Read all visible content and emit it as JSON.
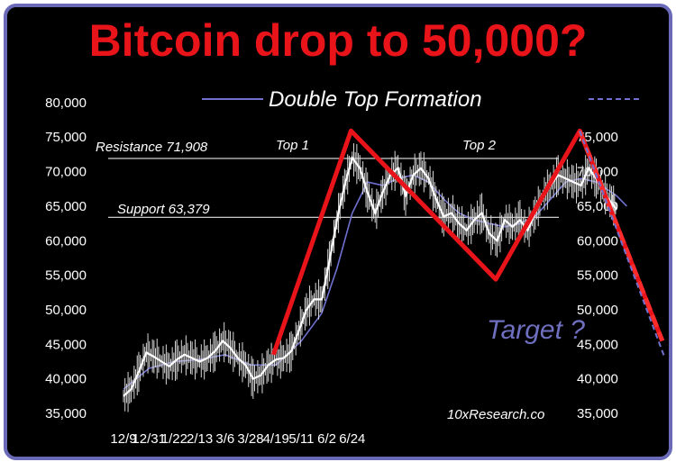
{
  "chart_data": {
    "type": "line",
    "title": "Bitcoin drop to 50,000?",
    "ylim": [
      35000,
      80000
    ],
    "left_y_ticks": [
      "80,000",
      "75,000",
      "70,000",
      "65,000",
      "60,000",
      "55,000",
      "50,000",
      "45,000",
      "40,000",
      "35,000"
    ],
    "right_y_ticks": [
      "75,000",
      "70,000",
      "65,000",
      "60,000",
      "55,000",
      "50,000",
      "45,000",
      "40,000",
      "35,000"
    ],
    "x_ticks": [
      "12/9",
      "12/31",
      "1/22",
      "2/13",
      "3/6",
      "3/28",
      "4/19",
      "5/11",
      "6/2",
      "6/24"
    ],
    "legend": {
      "label": "Double Top Formation",
      "placement": "top-right"
    },
    "resistance": {
      "label": "Resistance",
      "value_text": "71,908",
      "value": 71908
    },
    "support": {
      "label": "Support",
      "value_text": "63,379",
      "value": 63379
    },
    "annotations": {
      "top1": "Top 1",
      "top2": "Top 2",
      "target": "Target ?",
      "credit": "10xResearch.co"
    },
    "pattern_line": [
      {
        "x": 5.9,
        "y": 43500
      },
      {
        "x": 8.95,
        "y": 75900
      },
      {
        "x": 14.65,
        "y": 54400
      },
      {
        "x": 17.95,
        "y": 75900
      },
      {
        "x": 21.2,
        "y": 45500
      }
    ],
    "price_series": [
      [
        0,
        37500
      ],
      [
        0.3,
        38500
      ],
      [
        0.6,
        41000
      ],
      [
        0.9,
        43800
      ],
      [
        1.2,
        43200
      ],
      [
        1.5,
        42500
      ],
      [
        1.8,
        41800
      ],
      [
        2.1,
        42800
      ],
      [
        2.4,
        43500
      ],
      [
        2.7,
        43000
      ],
      [
        3.0,
        42500
      ],
      [
        3.3,
        43000
      ],
      [
        3.6,
        44000
      ],
      [
        3.9,
        45500
      ],
      [
        4.2,
        44500
      ],
      [
        4.5,
        43000
      ],
      [
        4.8,
        42000
      ],
      [
        5.1,
        40000
      ],
      [
        5.4,
        40500
      ],
      [
        5.7,
        42000
      ],
      [
        6.0,
        42800
      ],
      [
        6.3,
        43000
      ],
      [
        6.6,
        44000
      ],
      [
        6.9,
        47000
      ],
      [
        7.2,
        50000
      ],
      [
        7.5,
        51500
      ],
      [
        7.8,
        51500
      ],
      [
        8.1,
        57000
      ],
      [
        8.4,
        63000
      ],
      [
        8.7,
        68000
      ],
      [
        9.0,
        72000
      ],
      [
        9.3,
        70500
      ],
      [
        9.6,
        67000
      ],
      [
        9.9,
        64000
      ],
      [
        10.2,
        67000
      ],
      [
        10.5,
        69500
      ],
      [
        10.8,
        70500
      ],
      [
        11.1,
        66500
      ],
      [
        11.4,
        69500
      ],
      [
        11.7,
        70500
      ],
      [
        12.0,
        69000
      ],
      [
        12.3,
        66000
      ],
      [
        12.6,
        63500
      ],
      [
        12.9,
        64000
      ],
      [
        13.2,
        62500
      ],
      [
        13.5,
        61500
      ],
      [
        13.8,
        63000
      ],
      [
        14.1,
        64000
      ],
      [
        14.4,
        61000
      ],
      [
        14.7,
        60000
      ],
      [
        15.0,
        63000
      ],
      [
        15.3,
        62000
      ],
      [
        15.6,
        63000
      ],
      [
        15.9,
        61500
      ],
      [
        16.2,
        64000
      ],
      [
        16.5,
        66500
      ],
      [
        16.8,
        68000
      ],
      [
        17.1,
        69500
      ],
      [
        17.4,
        69000
      ],
      [
        17.7,
        68500
      ],
      [
        18.0,
        68000
      ],
      [
        18.3,
        70500
      ],
      [
        18.6,
        69000
      ],
      [
        18.9,
        67000
      ],
      [
        19.2,
        65500
      ],
      [
        19.4,
        64500
      ]
    ],
    "moving_average": [
      [
        0,
        38500
      ],
      [
        1.0,
        41500
      ],
      [
        2.0,
        42500
      ],
      [
        3.0,
        42800
      ],
      [
        4.0,
        43500
      ],
      [
        5.0,
        42000
      ],
      [
        6.0,
        42000
      ],
      [
        7.0,
        45500
      ],
      [
        7.8,
        49500
      ],
      [
        8.4,
        56000
      ],
      [
        9.0,
        64000
      ],
      [
        9.6,
        68500
      ],
      [
        10.2,
        68000
      ],
      [
        10.8,
        69000
      ],
      [
        11.4,
        69500
      ],
      [
        12.0,
        68500
      ],
      [
        12.6,
        66000
      ],
      [
        13.2,
        64000
      ],
      [
        13.8,
        63000
      ],
      [
        14.4,
        62500
      ],
      [
        15.0,
        62000
      ],
      [
        15.6,
        62500
      ],
      [
        16.2,
        63500
      ],
      [
        16.8,
        66000
      ],
      [
        17.4,
        68500
      ],
      [
        18.0,
        69000
      ],
      [
        18.6,
        68500
      ],
      [
        19.4,
        66500
      ],
      [
        19.8,
        65000
      ]
    ],
    "projection_line": [
      {
        "x": 17.95,
        "y": 75900
      },
      {
        "x": 21.3,
        "y": 43000
      }
    ],
    "colors": {
      "title": "#e8141a",
      "pattern": "#e8141a",
      "moving_average": "#7070d0",
      "projection": "#7070d0",
      "frame": "#6a6ab8",
      "price": "#ffffff"
    },
    "grid": false
  }
}
